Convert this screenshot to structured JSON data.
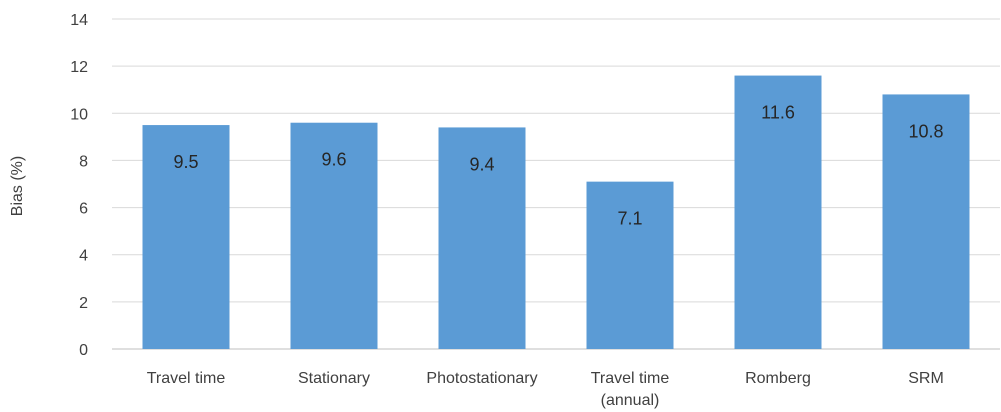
{
  "chart_data": {
    "type": "bar",
    "title": "",
    "xlabel": "",
    "ylabel": "Bias (%)",
    "ylim": [
      0,
      14
    ],
    "y_ticks": [
      0,
      2,
      4,
      6,
      8,
      10,
      12,
      14
    ],
    "grid": true,
    "legend": "none",
    "categories": [
      [
        "Travel time"
      ],
      [
        "Stationary"
      ],
      [
        "Photostationary"
      ],
      [
        "Travel time",
        "(annual)"
      ],
      [
        "Romberg"
      ],
      [
        "SRM"
      ]
    ],
    "values": [
      9.5,
      9.6,
      9.4,
      7.1,
      11.6,
      10.8
    ],
    "data_labels": [
      "9.5",
      "9.6",
      "9.4",
      "7.1",
      "11.6",
      "10.8"
    ],
    "colors": {
      "bar": "#5B9BD5",
      "grid": "#D9D9D9",
      "axis": "#BFBFBF"
    }
  }
}
